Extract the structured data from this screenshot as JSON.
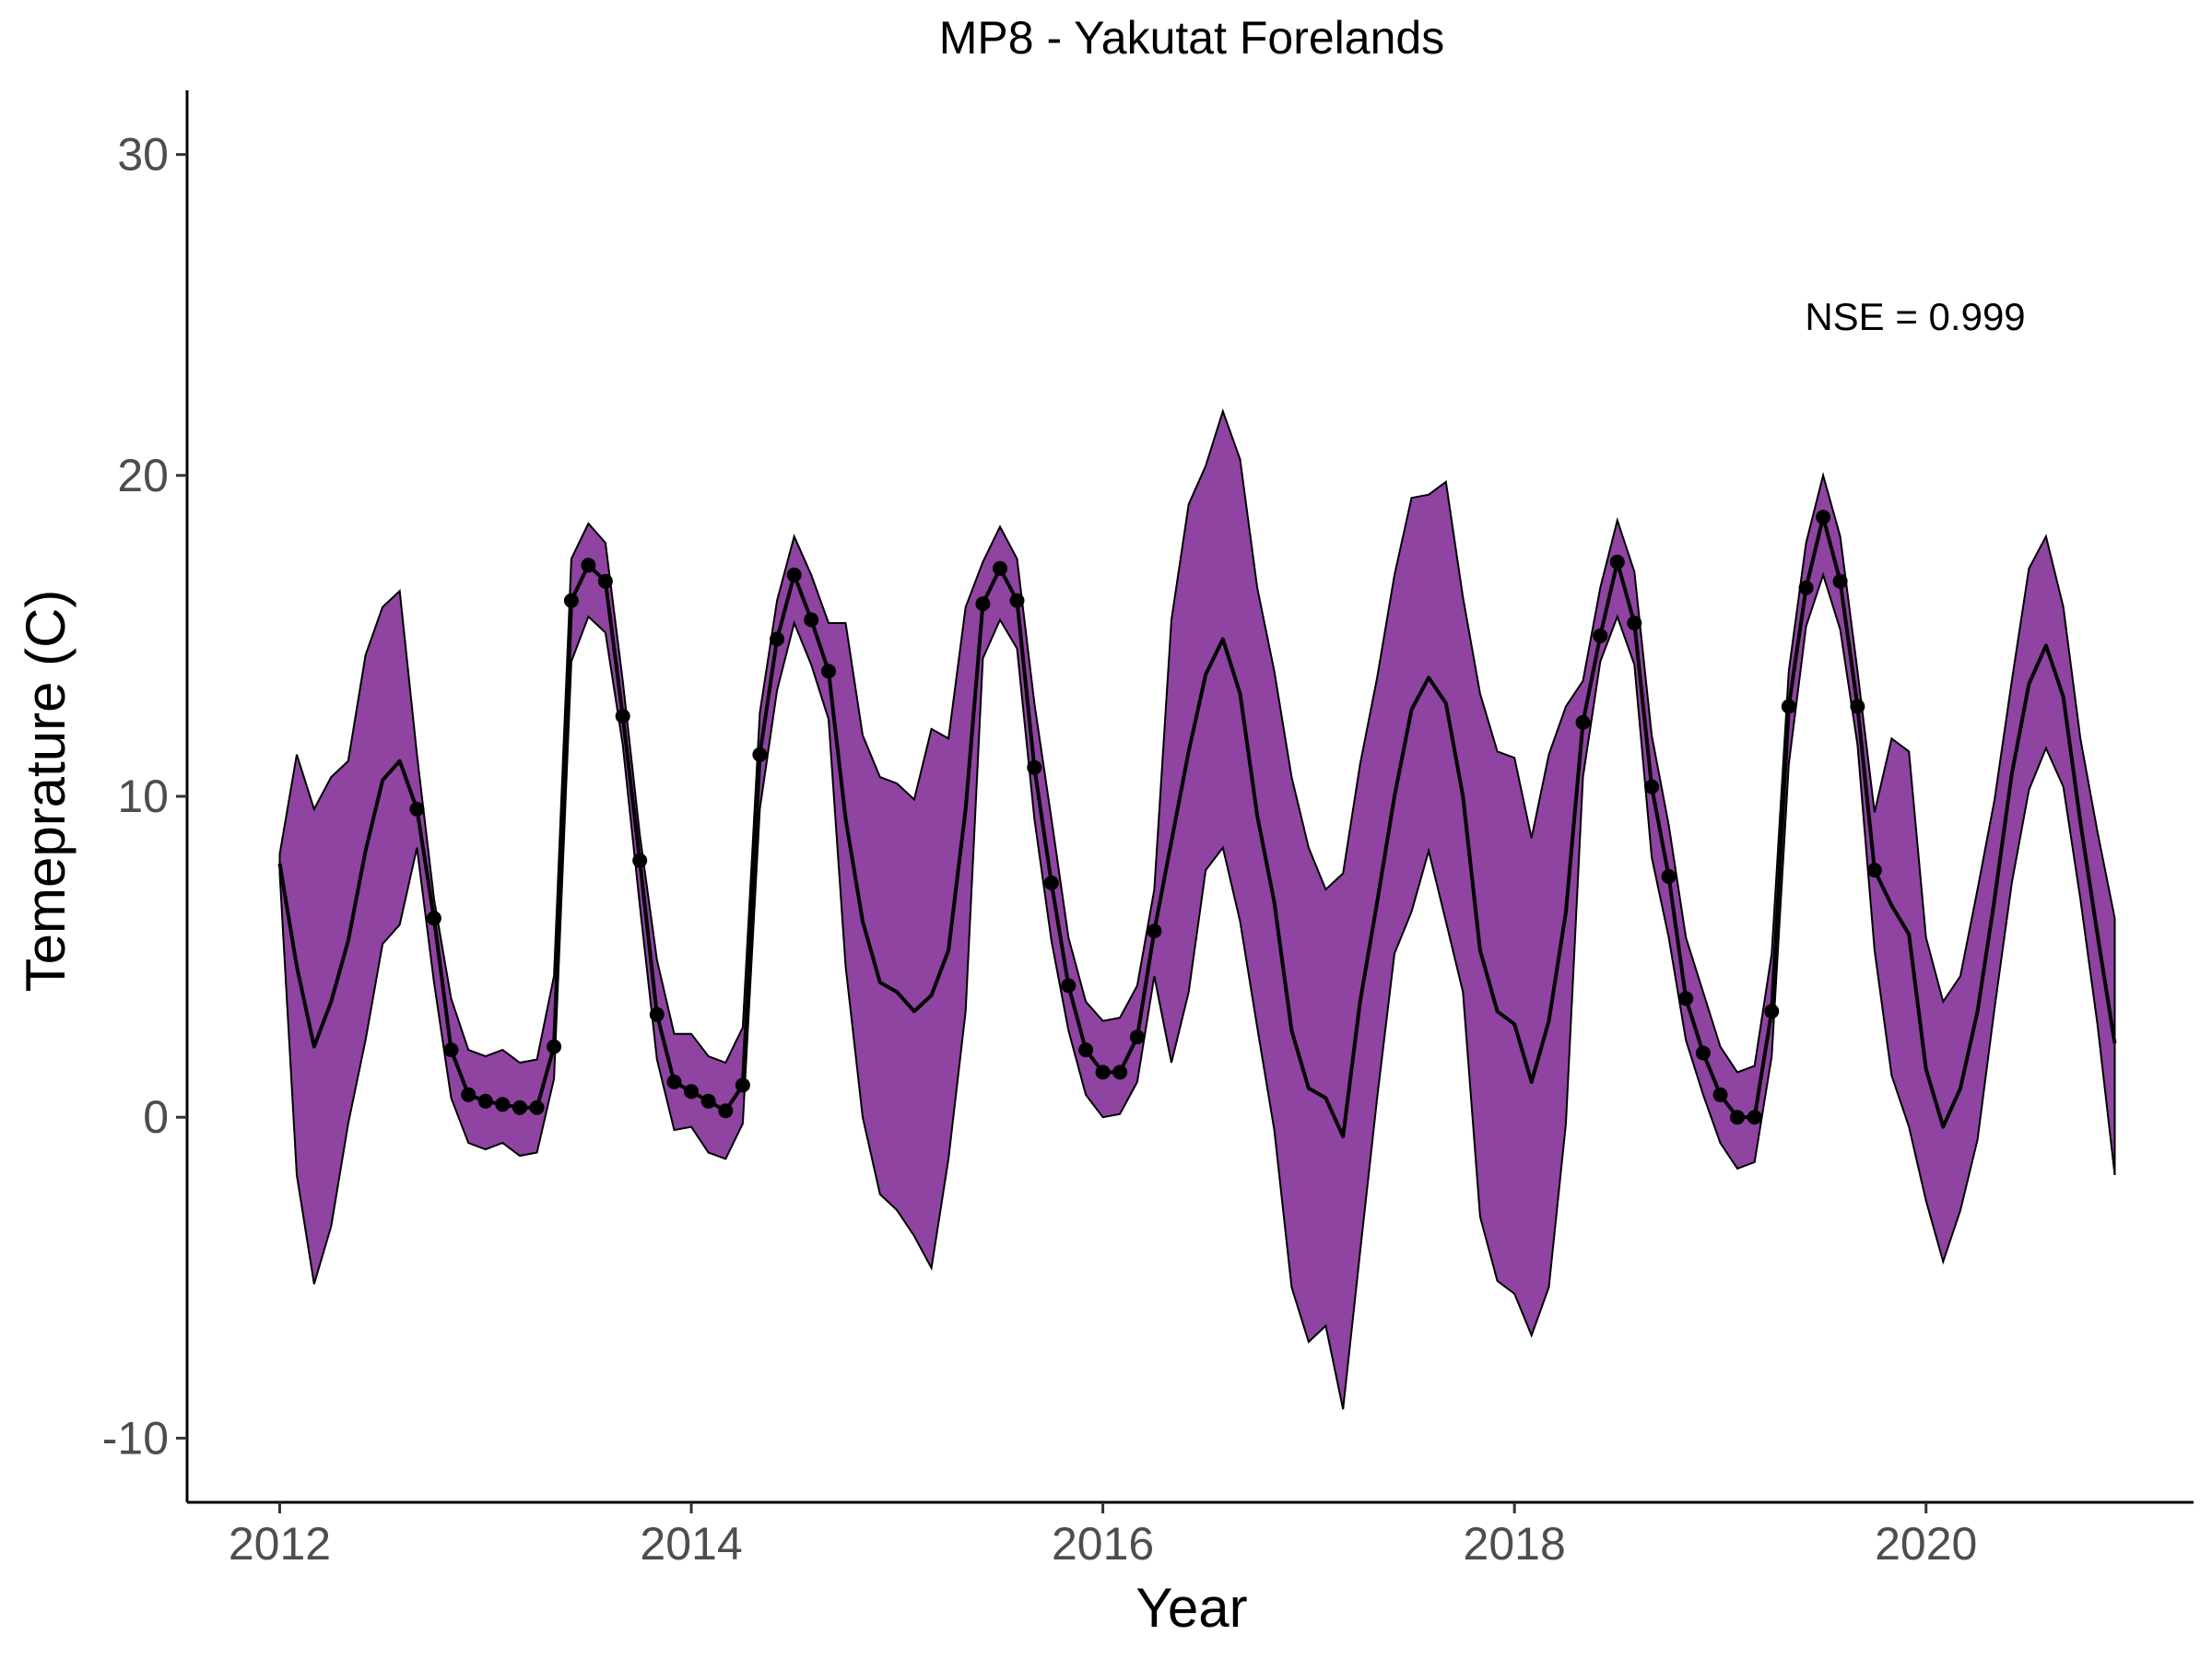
{
  "chart_data": {
    "type": "line",
    "title": "MP8 - Yakutat Forelands",
    "xlabel": "Year",
    "ylabel": "Temeprature (C)",
    "xlim": [
      2011.55,
      2021.3
    ],
    "ylim": [
      -12.0,
      32.0
    ],
    "x_ticks": [
      2012,
      2014,
      2016,
      2018,
      2020
    ],
    "y_ticks": [
      -10,
      0,
      10,
      20,
      30
    ],
    "grid": false,
    "legend": "none",
    "annotation": "NSE = 0.999",
    "colors": {
      "band_fill": "#8e44a0",
      "band_edge": "#000000",
      "line": "#000000",
      "points": "#000000"
    },
    "series": [
      {
        "type": "band",
        "x": [
          2012.0,
          2012.083,
          2012.167,
          2012.25,
          2012.333,
          2012.417,
          2012.5,
          2012.583,
          2012.667,
          2012.75,
          2012.833,
          2012.917,
          2013.0,
          2013.083,
          2013.167,
          2013.25,
          2013.333,
          2013.417,
          2013.5,
          2013.583,
          2013.667,
          2013.75,
          2013.833,
          2013.917,
          2014.0,
          2014.083,
          2014.167,
          2014.25,
          2014.333,
          2014.417,
          2014.5,
          2014.583,
          2014.667,
          2014.75,
          2014.833,
          2014.917,
          2015.0,
          2015.083,
          2015.167,
          2015.25,
          2015.333,
          2015.417,
          2015.5,
          2015.583,
          2015.667,
          2015.75,
          2015.833,
          2015.917,
          2016.0,
          2016.083,
          2016.167,
          2016.25,
          2016.333,
          2016.417,
          2016.5,
          2016.583,
          2016.667,
          2016.75,
          2016.833,
          2016.917,
          2017.0,
          2017.083,
          2017.167,
          2017.25,
          2017.333,
          2017.417,
          2017.5,
          2017.583,
          2017.667,
          2017.75,
          2017.833,
          2017.917,
          2018.0,
          2018.083,
          2018.167,
          2018.25,
          2018.333,
          2018.417,
          2018.5,
          2018.583,
          2018.667,
          2018.75,
          2018.833,
          2018.917,
          2019.0,
          2019.083,
          2019.167,
          2019.25,
          2019.333,
          2019.417,
          2019.5,
          2019.583,
          2019.667,
          2019.75,
          2019.833,
          2019.917,
          2020.0,
          2020.083,
          2020.167,
          2020.25,
          2020.333,
          2020.417,
          2020.5,
          2020.583,
          2020.667,
          2020.75,
          2020.833,
          2020.917
        ],
        "upper": [
          8.2,
          11.3,
          9.6,
          10.6,
          11.1,
          14.4,
          15.9,
          16.4,
          11.3,
          6.8,
          3.7,
          2.1,
          1.9,
          2.1,
          1.7,
          1.8,
          4.4,
          17.4,
          18.5,
          17.9,
          13.6,
          8.8,
          4.9,
          2.6,
          2.6,
          1.9,
          1.7,
          2.8,
          12.6,
          16.1,
          18.1,
          16.9,
          15.4,
          15.4,
          11.9,
          10.6,
          10.4,
          9.9,
          12.1,
          11.8,
          15.9,
          17.3,
          18.4,
          17.4,
          12.9,
          9.3,
          5.6,
          3.6,
          3.0,
          3.1,
          4.1,
          7.1,
          15.5,
          19.1,
          20.3,
          22.0,
          20.5,
          16.5,
          13.9,
          10.6,
          8.4,
          7.1,
          7.6,
          11.0,
          13.7,
          16.9,
          19.3,
          19.4,
          19.8,
          16.2,
          13.2,
          11.4,
          11.2,
          8.7,
          11.3,
          12.8,
          13.6,
          16.5,
          18.6,
          17.0,
          11.9,
          9.1,
          5.6,
          3.9,
          2.2,
          1.4,
          1.6,
          5.1,
          13.9,
          17.9,
          20.0,
          18.1,
          13.9,
          9.5,
          11.8,
          11.4,
          5.6,
          3.6,
          4.4,
          7.1,
          9.9,
          13.6,
          17.1,
          18.1,
          15.9,
          11.8,
          8.9,
          6.2
        ],
        "lower": [
          7.6,
          -1.8,
          -5.2,
          -3.4,
          -0.2,
          2.4,
          5.4,
          6.0,
          8.4,
          4.2,
          0.6,
          -0.8,
          -1.0,
          -0.8,
          -1.2,
          -1.1,
          1.2,
          14.2,
          15.6,
          15.1,
          11.6,
          6.6,
          1.8,
          -0.4,
          -0.3,
          -1.1,
          -1.3,
          -0.2,
          9.6,
          13.3,
          15.4,
          14.1,
          12.4,
          4.7,
          0.0,
          -2.4,
          -2.9,
          -3.7,
          -4.7,
          -1.3,
          3.3,
          14.3,
          15.5,
          14.6,
          9.3,
          5.5,
          2.7,
          0.7,
          0.0,
          0.1,
          1.1,
          4.4,
          1.7,
          3.9,
          7.7,
          8.4,
          6.1,
          2.8,
          -0.4,
          -5.3,
          -7.0,
          -6.5,
          -9.1,
          -4.2,
          0.6,
          5.1,
          6.4,
          8.3,
          6.1,
          3.9,
          -3.1,
          -5.1,
          -5.5,
          -6.8,
          -5.3,
          -0.2,
          10.6,
          14.2,
          15.6,
          14.1,
          8.1,
          5.6,
          2.4,
          0.7,
          -0.8,
          -1.6,
          -1.4,
          1.9,
          11.0,
          15.3,
          16.9,
          15.2,
          11.6,
          5.2,
          1.3,
          -0.3,
          -2.6,
          -4.5,
          -2.9,
          -0.7,
          3.4,
          7.3,
          10.2,
          11.5,
          10.3,
          6.8,
          2.9,
          -1.8
        ]
      },
      {
        "type": "line",
        "x": [
          2012.0,
          2012.083,
          2012.167,
          2012.25,
          2012.333,
          2012.417,
          2012.5,
          2012.583,
          2012.667,
          2012.75,
          2012.833,
          2012.917,
          2013.0,
          2013.083,
          2013.167,
          2013.25,
          2013.333,
          2013.417,
          2013.5,
          2013.583,
          2013.667,
          2013.75,
          2013.833,
          2013.917,
          2014.0,
          2014.083,
          2014.167,
          2014.25,
          2014.333,
          2014.417,
          2014.5,
          2014.583,
          2014.667,
          2014.75,
          2014.833,
          2014.917,
          2015.0,
          2015.083,
          2015.167,
          2015.25,
          2015.333,
          2015.417,
          2015.5,
          2015.583,
          2015.667,
          2015.75,
          2015.833,
          2015.917,
          2016.0,
          2016.083,
          2016.167,
          2016.25,
          2016.333,
          2016.417,
          2016.5,
          2016.583,
          2016.667,
          2016.75,
          2016.833,
          2016.917,
          2017.0,
          2017.083,
          2017.167,
          2017.25,
          2017.333,
          2017.417,
          2017.5,
          2017.583,
          2017.667,
          2017.75,
          2017.833,
          2017.917,
          2018.0,
          2018.083,
          2018.167,
          2018.25,
          2018.333,
          2018.417,
          2018.5,
          2018.583,
          2018.667,
          2018.75,
          2018.833,
          2018.917,
          2019.0,
          2019.083,
          2019.167,
          2019.25,
          2019.333,
          2019.417,
          2019.5,
          2019.583,
          2019.667,
          2019.75,
          2019.833,
          2019.917,
          2020.0,
          2020.083,
          2020.167,
          2020.25,
          2020.333,
          2020.417,
          2020.5,
          2020.583,
          2020.667,
          2020.75,
          2020.833,
          2020.917
        ],
        "y": [
          7.9,
          4.7,
          2.2,
          3.6,
          5.5,
          8.3,
          10.5,
          11.1,
          9.6,
          6.2,
          2.1,
          0.7,
          0.5,
          0.4,
          0.3,
          0.3,
          2.2,
          16.1,
          17.2,
          16.7,
          12.5,
          8.0,
          3.2,
          1.1,
          0.8,
          0.5,
          0.2,
          1.0,
          11.3,
          14.9,
          16.9,
          15.5,
          13.9,
          9.3,
          6.1,
          4.2,
          3.9,
          3.3,
          3.8,
          5.2,
          9.6,
          16.0,
          17.1,
          16.1,
          10.9,
          7.3,
          4.1,
          2.1,
          1.4,
          1.4,
          2.5,
          5.8,
          8.6,
          11.4,
          13.8,
          14.9,
          13.2,
          9.4,
          6.7,
          2.7,
          0.9,
          0.6,
          -0.6,
          3.6,
          6.7,
          10.0,
          12.7,
          13.7,
          12.9,
          10.0,
          5.2,
          3.3,
          2.9,
          1.1,
          3.0,
          6.4,
          12.3,
          15.0,
          17.3,
          15.4,
          10.3,
          7.5,
          3.7,
          2.0,
          0.7,
          0.0,
          0.0,
          3.3,
          12.8,
          16.5,
          18.7,
          16.7,
          12.8,
          7.7,
          6.6,
          5.7,
          1.5,
          -0.3,
          0.9,
          3.3,
          6.8,
          10.7,
          13.5,
          14.7,
          13.1,
          9.2,
          5.7,
          2.3
        ]
      },
      {
        "type": "scatter",
        "x": [
          2012.667,
          2012.75,
          2012.833,
          2012.917,
          2013.0,
          2013.083,
          2013.167,
          2013.25,
          2013.333,
          2013.417,
          2013.5,
          2013.583,
          2013.667,
          2013.75,
          2013.833,
          2013.917,
          2014.0,
          2014.083,
          2014.167,
          2014.25,
          2014.333,
          2014.417,
          2014.5,
          2014.583,
          2014.667,
          2015.417,
          2015.5,
          2015.583,
          2015.667,
          2015.75,
          2015.833,
          2015.917,
          2016.0,
          2016.083,
          2016.167,
          2016.25,
          2018.333,
          2018.417,
          2018.5,
          2018.583,
          2018.667,
          2018.75,
          2018.833,
          2018.917,
          2019.0,
          2019.083,
          2019.167,
          2019.25,
          2019.333,
          2019.417,
          2019.5,
          2019.583,
          2019.667,
          2019.75
        ],
        "y": [
          9.6,
          6.2,
          2.1,
          0.7,
          0.5,
          0.4,
          0.3,
          0.3,
          2.2,
          16.1,
          17.2,
          16.7,
          12.5,
          8.0,
          3.2,
          1.1,
          0.8,
          0.5,
          0.2,
          1.0,
          11.3,
          14.9,
          16.9,
          15.5,
          13.9,
          16.0,
          17.1,
          16.1,
          10.9,
          7.3,
          4.1,
          2.1,
          1.4,
          1.4,
          2.5,
          5.8,
          12.3,
          15.0,
          17.3,
          15.4,
          10.3,
          7.5,
          3.7,
          2.0,
          0.7,
          0.0,
          0.0,
          3.3,
          12.8,
          16.5,
          18.7,
          16.7,
          12.8,
          7.7
        ]
      }
    ]
  }
}
